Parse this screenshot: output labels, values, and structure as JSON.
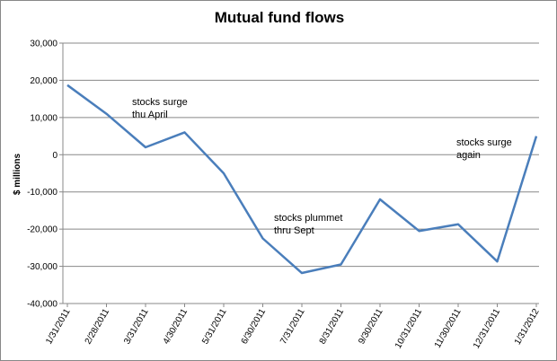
{
  "chart_data": {
    "type": "line",
    "title": "Mutual fund flows",
    "y_label": "$ millions",
    "categories": [
      "1/31/2011",
      "2/28/2011",
      "3/31/2011",
      "4/30/2011",
      "5/31/2011",
      "6/30/2011",
      "7/31/2011",
      "8/31/2011",
      "9/30/2011",
      "10/31/2011",
      "11/30/2011",
      "12/31/2011",
      "1/31/2012"
    ],
    "series": [
      {
        "color": "#4a7ebb",
        "values": [
          18700,
          11000,
          2000,
          6000,
          -5000,
          -22500,
          -31800,
          -29500,
          -12000,
          -20500,
          -18700,
          -28700,
          5000
        ]
      }
    ],
    "ylim": [
      -40000,
      30000
    ],
    "yticks": [
      {
        "value": -40000,
        "label": "-40,000"
      },
      {
        "value": -30000,
        "label": "-30,000"
      },
      {
        "value": -20000,
        "label": "-20,000"
      },
      {
        "value": -10000,
        "label": "-10,000"
      },
      0,
      {
        "value": 10000,
        "label": "10,000"
      },
      {
        "value": 20000,
        "label": "20,000"
      },
      {
        "value": 30000,
        "label": "30,000"
      }
    ],
    "grid": true,
    "annotations": [
      {
        "lines": [
          "stocks surge",
          "thu April"
        ]
      },
      {
        "lines": [
          "stocks plummet",
          "thru Sept"
        ]
      },
      {
        "lines": [
          "stocks surge",
          "again"
        ]
      }
    ]
  }
}
